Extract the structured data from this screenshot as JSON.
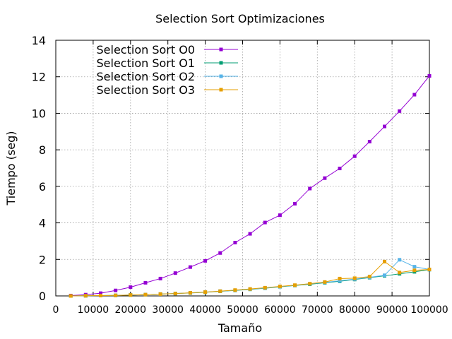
{
  "chart_data": {
    "type": "line",
    "title": "Selection Sort Optimizaciones",
    "xlabel": "Tamaño",
    "ylabel": "Tiempo (seg)",
    "xlim": [
      0,
      100000
    ],
    "ylim": [
      0,
      14
    ],
    "x_ticks": [
      0,
      10000,
      20000,
      30000,
      40000,
      50000,
      60000,
      70000,
      80000,
      90000,
      100000
    ],
    "y_ticks": [
      0,
      2,
      4,
      6,
      8,
      10,
      12,
      14
    ],
    "grid": true,
    "legend_position": "top-left",
    "x": [
      4000,
      8000,
      12000,
      16000,
      20000,
      24000,
      28000,
      32000,
      36000,
      40000,
      44000,
      48000,
      52000,
      56000,
      60000,
      64000,
      68000,
      72000,
      76000,
      80000,
      84000,
      88000,
      92000,
      96000,
      100000
    ],
    "series": [
      {
        "name": "Selection Sort O0",
        "color": "#9400d3",
        "values": [
          0.02,
          0.07,
          0.15,
          0.3,
          0.48,
          0.72,
          0.95,
          1.25,
          1.58,
          1.92,
          2.35,
          2.92,
          3.4,
          4.02,
          4.42,
          5.05,
          5.88,
          6.45,
          6.98,
          7.65,
          8.45,
          9.28,
          10.12,
          11.02,
          12.05
        ]
      },
      {
        "name": "Selection Sort O1",
        "color": "#009e73",
        "values": [
          0.0,
          0.01,
          0.02,
          0.03,
          0.05,
          0.07,
          0.1,
          0.13,
          0.16,
          0.2,
          0.25,
          0.3,
          0.36,
          0.42,
          0.5,
          0.57,
          0.64,
          0.72,
          0.8,
          0.9,
          1.0,
          1.1,
          1.21,
          1.32,
          1.44
        ]
      },
      {
        "name": "Selection Sort O2",
        "color": "#56b4e9",
        "values": [
          0.0,
          0.01,
          0.02,
          0.03,
          0.05,
          0.07,
          0.1,
          0.13,
          0.17,
          0.21,
          0.26,
          0.31,
          0.37,
          0.43,
          0.51,
          0.58,
          0.66,
          0.74,
          0.83,
          0.92,
          1.02,
          1.13,
          1.98,
          1.6,
          1.45
        ]
      },
      {
        "name": "Selection Sort O3",
        "color": "#e69f00",
        "values": [
          0.0,
          0.01,
          0.02,
          0.03,
          0.05,
          0.07,
          0.1,
          0.13,
          0.17,
          0.21,
          0.26,
          0.32,
          0.38,
          0.45,
          0.52,
          0.59,
          0.67,
          0.76,
          0.95,
          0.97,
          1.06,
          1.88,
          1.28,
          1.4,
          1.45
        ]
      }
    ]
  }
}
